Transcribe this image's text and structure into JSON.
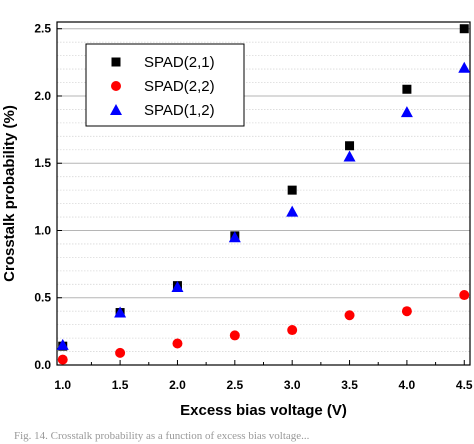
{
  "chart_data": {
    "type": "scatter",
    "title": "",
    "xlabel": "Excess bias voltage (V)",
    "ylabel": "Crosstalk probability (%)",
    "xlim": [
      0.95,
      4.55
    ],
    "ylim": [
      0.0,
      2.55
    ],
    "xticks": [
      "1.0",
      "1.5",
      "2.0",
      "2.5",
      "3.0",
      "3.5",
      "4.0",
      "4.5"
    ],
    "yticks": [
      "0.0",
      "0.5",
      "1.0",
      "1.5",
      "2.0",
      "2.5"
    ],
    "grid": "major and minor y gridlines",
    "legend_position": "top-left",
    "series": [
      {
        "name": "SPAD(2,1)",
        "marker": "square",
        "color": "#000000",
        "x": [
          1.0,
          1.5,
          2.0,
          2.5,
          3.0,
          3.5,
          4.0,
          4.5
        ],
        "y": [
          0.14,
          0.39,
          0.59,
          0.96,
          1.3,
          1.63,
          2.05,
          2.5
        ]
      },
      {
        "name": "SPAD(2,2)",
        "marker": "circle",
        "color": "#ff0000",
        "x": [
          1.0,
          1.5,
          2.0,
          2.5,
          3.0,
          3.5,
          4.0,
          4.5
        ],
        "y": [
          0.04,
          0.09,
          0.16,
          0.22,
          0.26,
          0.37,
          0.4,
          0.52
        ]
      },
      {
        "name": "SPAD(1,2)",
        "marker": "triangle",
        "color": "#0000ff",
        "x": [
          1.0,
          1.5,
          2.0,
          2.5,
          3.0,
          3.5,
          4.0,
          4.5
        ],
        "y": [
          0.15,
          0.39,
          0.58,
          0.95,
          1.14,
          1.55,
          1.88,
          2.21
        ]
      }
    ]
  },
  "top_fragment": "",
  "caption": "Fig. 14. Crosstalk probability as a function of excess bias voltage..."
}
